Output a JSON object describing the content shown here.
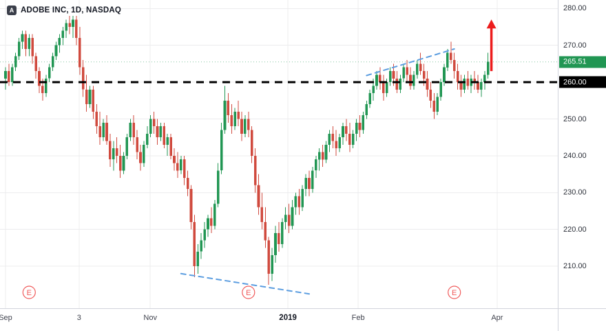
{
  "header": {
    "symbol_title": "ADOBE INC, 1D, NASDAQ",
    "logo_letter": "A"
  },
  "badges": {
    "current": {
      "text": "265.51"
    },
    "level": {
      "text": "260.00"
    }
  },
  "colors": {
    "up": "#219653",
    "down": "#d04a3e",
    "grid": "#ececee",
    "trendline": "#5b9de0",
    "arrow": "#ec1c1c",
    "earnings": "#f05a5a",
    "level": "#000000",
    "badge_current_bg": "#219653",
    "badge_level_bg": "#000000"
  },
  "chart_data": {
    "type": "candlestick",
    "title": "ADOBE INC, 1D, NASDAQ",
    "current_price": 265.51,
    "price_range": {
      "min": 198.6,
      "max": 282.3
    },
    "axis": {
      "price_ticks": [
        {
          "text": "280.00",
          "price": 280
        },
        {
          "text": "270.00",
          "price": 270
        },
        {
          "text": "260.00",
          "price": 260
        },
        {
          "text": "250.00",
          "price": 250
        },
        {
          "text": "240.00",
          "price": 240
        },
        {
          "text": "230.00",
          "price": 230
        },
        {
          "text": "220.00",
          "price": 220
        },
        {
          "text": "210.00",
          "price": 210
        }
      ],
      "time_ticks": [
        {
          "text": "Sep",
          "index": 0
        },
        {
          "text": "3",
          "index": 21.8
        },
        {
          "text": "Nov",
          "index": 42.9
        },
        {
          "text": "2019",
          "index": 83.7,
          "emphasis": true
        },
        {
          "text": "Feb",
          "index": 104.5
        },
        {
          "text": "Apr",
          "index": 145.7
        }
      ]
    },
    "annotations": {
      "level_line": {
        "price": 260,
        "style": "dashed",
        "color": "#000000"
      },
      "trendlines": [
        {
          "from": {
            "index": 52,
            "price": 208.0
          },
          "to": {
            "index": 90,
            "price": 202.5
          }
        },
        {
          "from": {
            "index": 107,
            "price": 261.8
          },
          "to": {
            "index": 133,
            "price": 269.0
          }
        }
      ],
      "arrow_up": {
        "index": 144,
        "price_from": 263,
        "price_to": 277
      },
      "earnings": {
        "label": "E",
        "indices": [
          7,
          72,
          133
        ]
      }
    },
    "candles": [
      [
        261,
        264,
        258,
        263
      ],
      [
        263,
        265,
        259,
        260
      ],
      [
        260,
        265,
        259,
        264
      ],
      [
        264,
        268,
        263,
        267
      ],
      [
        267,
        272,
        266,
        271
      ],
      [
        271,
        274,
        269,
        273
      ],
      [
        273,
        274,
        267,
        269
      ],
      [
        269,
        273,
        267,
        272
      ],
      [
        272,
        273,
        265,
        267
      ],
      [
        267,
        268,
        261,
        263
      ],
      [
        263,
        264,
        257,
        259
      ],
      [
        259,
        261,
        255,
        257
      ],
      [
        257,
        262,
        256,
        261
      ],
      [
        261,
        265,
        260,
        264
      ],
      [
        264,
        268,
        263,
        267
      ],
      [
        267,
        271,
        266,
        270
      ],
      [
        270,
        273,
        268,
        272
      ],
      [
        272,
        275,
        270,
        274
      ],
      [
        274,
        277,
        272,
        276
      ],
      [
        276,
        278,
        273,
        275
      ],
      [
        275,
        278,
        272,
        277
      ],
      [
        277,
        278,
        270,
        272
      ],
      [
        272,
        275,
        262,
        264
      ],
      [
        264,
        266,
        256,
        258
      ],
      [
        258,
        262,
        252,
        254
      ],
      [
        254,
        259,
        253,
        258
      ],
      [
        258,
        259,
        250,
        252
      ],
      [
        252,
        254,
        246,
        248
      ],
      [
        248,
        252,
        243,
        245
      ],
      [
        245,
        250,
        244,
        249
      ],
      [
        249,
        251,
        243,
        244
      ],
      [
        244,
        246,
        237,
        239
      ],
      [
        239,
        244,
        236,
        242
      ],
      [
        242,
        245,
        238,
        240
      ],
      [
        240,
        243,
        234,
        236
      ],
      [
        236,
        241,
        235,
        240
      ],
      [
        240,
        246,
        239,
        245
      ],
      [
        245,
        250,
        244,
        249
      ],
      [
        249,
        251,
        243,
        245
      ],
      [
        245,
        247,
        239,
        241
      ],
      [
        241,
        243,
        236,
        238
      ],
      [
        238,
        244,
        237,
        243
      ],
      [
        243,
        248,
        242,
        246
      ],
      [
        246,
        251,
        245,
        250
      ],
      [
        250,
        252,
        246,
        248
      ],
      [
        248,
        250,
        243,
        245
      ],
      [
        245,
        249,
        244,
        248
      ],
      [
        248,
        249,
        242,
        243
      ],
      [
        243,
        246,
        240,
        245
      ],
      [
        245,
        246,
        239,
        240
      ],
      [
        240,
        242,
        236,
        238
      ],
      [
        238,
        241,
        234,
        236
      ],
      [
        236,
        240,
        235,
        239
      ],
      [
        239,
        240,
        232,
        234
      ],
      [
        234,
        236,
        229,
        231
      ],
      [
        231,
        232,
        220,
        222
      ],
      [
        222,
        224,
        207,
        210
      ],
      [
        210,
        216,
        208,
        214
      ],
      [
        214,
        219,
        212,
        217
      ],
      [
        217,
        222,
        215,
        220
      ],
      [
        220,
        224,
        218,
        223
      ],
      [
        223,
        226,
        219,
        221
      ],
      [
        221,
        228,
        220,
        227
      ],
      [
        227,
        238,
        226,
        236
      ],
      [
        236,
        249,
        235,
        247
      ],
      [
        247,
        259,
        246,
        255
      ],
      [
        255,
        257,
        249,
        251
      ],
      [
        251,
        254,
        246,
        248
      ],
      [
        248,
        253,
        247,
        252
      ],
      [
        252,
        255,
        248,
        250
      ],
      [
        250,
        252,
        244,
        246
      ],
      [
        246,
        251,
        245,
        250
      ],
      [
        250,
        252,
        245,
        247
      ],
      [
        247,
        248,
        238,
        240
      ],
      [
        240,
        242,
        230,
        232
      ],
      [
        232,
        235,
        224,
        226
      ],
      [
        226,
        230,
        220,
        222
      ],
      [
        222,
        226,
        215,
        217
      ],
      [
        217,
        218,
        205,
        208
      ],
      [
        208,
        215,
        206,
        213
      ],
      [
        213,
        221,
        211,
        219
      ],
      [
        219,
        222,
        214,
        216
      ],
      [
        216,
        223,
        215,
        222
      ],
      [
        222,
        226,
        220,
        224
      ],
      [
        224,
        227,
        219,
        221
      ],
      [
        221,
        228,
        220,
        226
      ],
      [
        226,
        230,
        224,
        229
      ],
      [
        229,
        231,
        224,
        226
      ],
      [
        226,
        232,
        225,
        231
      ],
      [
        231,
        235,
        229,
        234
      ],
      [
        234,
        236,
        229,
        231
      ],
      [
        231,
        237,
        230,
        236
      ],
      [
        236,
        240,
        234,
        239
      ],
      [
        239,
        242,
        236,
        241
      ],
      [
        241,
        243,
        237,
        239
      ],
      [
        239,
        244,
        238,
        243
      ],
      [
        243,
        247,
        241,
        246
      ],
      [
        246,
        248,
        242,
        244
      ],
      [
        244,
        247,
        240,
        242
      ],
      [
        242,
        246,
        241,
        245
      ],
      [
        245,
        249,
        243,
        248
      ],
      [
        248,
        250,
        244,
        246
      ],
      [
        246,
        249,
        241,
        243
      ],
      [
        243,
        247,
        242,
        246
      ],
      [
        246,
        250,
        244,
        249
      ],
      [
        249,
        251,
        245,
        247
      ],
      [
        247,
        252,
        246,
        251
      ],
      [
        251,
        255,
        250,
        254
      ],
      [
        254,
        258,
        253,
        257
      ],
      [
        257,
        261,
        255,
        259
      ],
      [
        259,
        263,
        258,
        262
      ],
      [
        262,
        264,
        258,
        260
      ],
      [
        260,
        262,
        255,
        257
      ],
      [
        257,
        261,
        256,
        260
      ],
      [
        260,
        264,
        259,
        263
      ],
      [
        263,
        265,
        259,
        261
      ],
      [
        261,
        263,
        257,
        258
      ],
      [
        258,
        262,
        257,
        261
      ],
      [
        261,
        265,
        260,
        264
      ],
      [
        264,
        266,
        260,
        262
      ],
      [
        262,
        264,
        258,
        259
      ],
      [
        259,
        263,
        258,
        262
      ],
      [
        262,
        266,
        261,
        265
      ],
      [
        265,
        268,
        262,
        263
      ],
      [
        263,
        265,
        259,
        261
      ],
      [
        261,
        263,
        256,
        258
      ],
      [
        258,
        260,
        253,
        255
      ],
      [
        255,
        257,
        250,
        252
      ],
      [
        252,
        257,
        251,
        256
      ],
      [
        256,
        261,
        255,
        260
      ],
      [
        260,
        265,
        259,
        264
      ],
      [
        264,
        269,
        263,
        268
      ],
      [
        268,
        271,
        265,
        266
      ],
      [
        266,
        268,
        261,
        263
      ],
      [
        263,
        265,
        258,
        260
      ],
      [
        260,
        262,
        256,
        258
      ],
      [
        258,
        262,
        257,
        261
      ],
      [
        261,
        263,
        258,
        259
      ],
      [
        259,
        262,
        257,
        261
      ],
      [
        261,
        263,
        258,
        260
      ],
      [
        260,
        262,
        257,
        258
      ],
      [
        258,
        261,
        256,
        260
      ],
      [
        260,
        263,
        258,
        262
      ],
      [
        262,
        268,
        261,
        265.51
      ]
    ]
  }
}
